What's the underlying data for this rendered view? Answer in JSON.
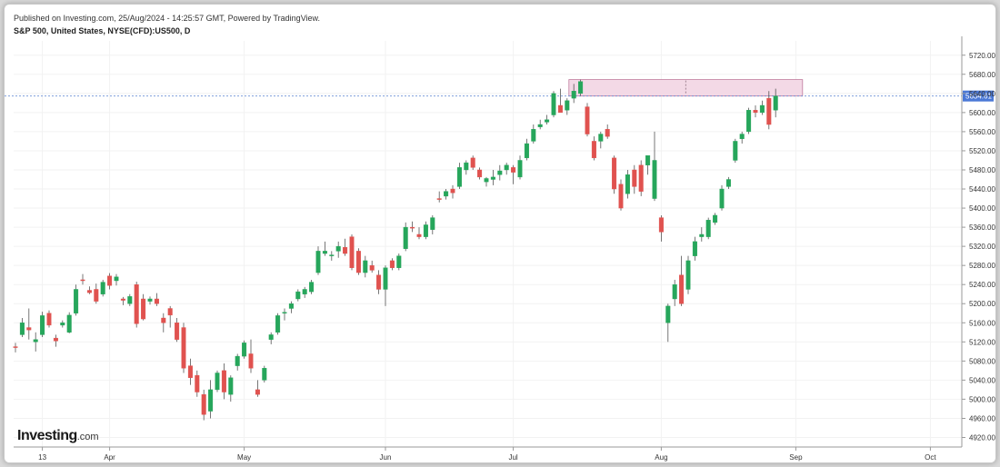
{
  "header": {
    "published": "Published on Investing.com, 25/Aug/2024 - 14:25:57 GMT, Powered by TradingView.",
    "title": "S&P 500, United States, NYSE(CFD):US500, D"
  },
  "logo": {
    "brand": "Investing",
    "suffix": ".com"
  },
  "colors": {
    "up": "#26a65b",
    "down": "#e0524f",
    "wick": "#555555",
    "grid": "#f2f2f2",
    "price_line": "#6b8fd6",
    "price_label_bg": "#4a78d6",
    "zone_fill": "#f3d9e6",
    "zone_stroke": "#c07a9c"
  },
  "chart_data": {
    "type": "candlestick",
    "ylim": [
      4900,
      5750
    ],
    "y_ticks": [
      4920,
      4960,
      5000,
      5040,
      5080,
      5120,
      5160,
      5200,
      5240,
      5280,
      5320,
      5360,
      5400,
      5440,
      5480,
      5520,
      5560,
      5600,
      5640,
      5680,
      5720
    ],
    "x_tick_labels": [
      {
        "label": "13",
        "index": 4
      },
      {
        "label": "Apr",
        "index": 14
      },
      {
        "label": "May",
        "index": 34
      },
      {
        "label": "Jun",
        "index": 55
      },
      {
        "label": "Jul",
        "index": 74
      },
      {
        "label": "Aug",
        "index": 96
      },
      {
        "label": "Sep",
        "index": 116
      },
      {
        "label": "Oct",
        "index": 136
      }
    ],
    "current_price": 5634.61,
    "current_price_label": "5634.61",
    "zone": {
      "start_index": 82,
      "end_index": 117,
      "low": 5634.61,
      "high": 5669
    },
    "candles": [
      {
        "o": 5110,
        "h": 5118,
        "l": 5098,
        "c": 5109
      },
      {
        "o": 5135,
        "h": 5170,
        "l": 5130,
        "c": 5160
      },
      {
        "o": 5150,
        "h": 5190,
        "l": 5125,
        "c": 5145
      },
      {
        "o": 5120,
        "h": 5140,
        "l": 5100,
        "c": 5125
      },
      {
        "o": 5135,
        "h": 5183,
        "l": 5130,
        "c": 5175
      },
      {
        "o": 5180,
        "h": 5186,
        "l": 5150,
        "c": 5155
      },
      {
        "o": 5128,
        "h": 5135,
        "l": 5110,
        "c": 5122
      },
      {
        "o": 5155,
        "h": 5165,
        "l": 5150,
        "c": 5160
      },
      {
        "o": 5140,
        "h": 5182,
        "l": 5138,
        "c": 5176
      },
      {
        "o": 5180,
        "h": 5240,
        "l": 5175,
        "c": 5230
      },
      {
        "o": 5250,
        "h": 5262,
        "l": 5240,
        "c": 5248
      },
      {
        "o": 5228,
        "h": 5236,
        "l": 5220,
        "c": 5223
      },
      {
        "o": 5230,
        "h": 5242,
        "l": 5200,
        "c": 5205
      },
      {
        "o": 5220,
        "h": 5250,
        "l": 5215,
        "c": 5245
      },
      {
        "o": 5258,
        "h": 5264,
        "l": 5230,
        "c": 5238
      },
      {
        "o": 5248,
        "h": 5262,
        "l": 5238,
        "c": 5256
      },
      {
        "o": 5210,
        "h": 5214,
        "l": 5197,
        "c": 5207
      },
      {
        "o": 5200,
        "h": 5220,
        "l": 5195,
        "c": 5215
      },
      {
        "o": 5240,
        "h": 5246,
        "l": 5150,
        "c": 5158
      },
      {
        "o": 5210,
        "h": 5220,
        "l": 5165,
        "c": 5168
      },
      {
        "o": 5205,
        "h": 5215,
        "l": 5198,
        "c": 5210
      },
      {
        "o": 5210,
        "h": 5222,
        "l": 5195,
        "c": 5200
      },
      {
        "o": 5170,
        "h": 5180,
        "l": 5140,
        "c": 5160
      },
      {
        "o": 5190,
        "h": 5195,
        "l": 5150,
        "c": 5176
      },
      {
        "o": 5160,
        "h": 5170,
        "l": 5120,
        "c": 5125
      },
      {
        "o": 5150,
        "h": 5160,
        "l": 5055,
        "c": 5065
      },
      {
        "o": 5070,
        "h": 5085,
        "l": 5030,
        "c": 5045
      },
      {
        "o": 5050,
        "h": 5060,
        "l": 5005,
        "c": 5015
      },
      {
        "o": 5010,
        "h": 5020,
        "l": 4956,
        "c": 4968
      },
      {
        "o": 4975,
        "h": 5040,
        "l": 4960,
        "c": 5020
      },
      {
        "o": 5020,
        "h": 5060,
        "l": 5015,
        "c": 5055
      },
      {
        "o": 5060,
        "h": 5075,
        "l": 5000,
        "c": 5015
      },
      {
        "o": 5010,
        "h": 5050,
        "l": 4995,
        "c": 5045
      },
      {
        "o": 5070,
        "h": 5095,
        "l": 5060,
        "c": 5090
      },
      {
        "o": 5090,
        "h": 5123,
        "l": 5085,
        "c": 5118
      },
      {
        "o": 5095,
        "h": 5125,
        "l": 5055,
        "c": 5065
      },
      {
        "o": 5020,
        "h": 5040,
        "l": 5005,
        "c": 5010
      },
      {
        "o": 5040,
        "h": 5070,
        "l": 5035,
        "c": 5065
      },
      {
        "o": 5125,
        "h": 5140,
        "l": 5115,
        "c": 5135
      },
      {
        "o": 5140,
        "h": 5180,
        "l": 5135,
        "c": 5175
      },
      {
        "o": 5180,
        "h": 5190,
        "l": 5165,
        "c": 5182
      },
      {
        "o": 5190,
        "h": 5205,
        "l": 5180,
        "c": 5200
      },
      {
        "o": 5210,
        "h": 5230,
        "l": 5205,
        "c": 5225
      },
      {
        "o": 5220,
        "h": 5235,
        "l": 5212,
        "c": 5230
      },
      {
        "o": 5225,
        "h": 5250,
        "l": 5220,
        "c": 5245
      },
      {
        "o": 5265,
        "h": 5320,
        "l": 5260,
        "c": 5310
      },
      {
        "o": 5305,
        "h": 5330,
        "l": 5300,
        "c": 5310
      },
      {
        "o": 5300,
        "h": 5310,
        "l": 5290,
        "c": 5302
      },
      {
        "o": 5310,
        "h": 5330,
        "l": 5296,
        "c": 5320
      },
      {
        "o": 5318,
        "h": 5336,
        "l": 5300,
        "c": 5305
      },
      {
        "o": 5340,
        "h": 5345,
        "l": 5270,
        "c": 5275
      },
      {
        "o": 5310,
        "h": 5316,
        "l": 5260,
        "c": 5265
      },
      {
        "o": 5265,
        "h": 5300,
        "l": 5255,
        "c": 5290
      },
      {
        "o": 5280,
        "h": 5290,
        "l": 5265,
        "c": 5270
      },
      {
        "o": 5260,
        "h": 5270,
        "l": 5220,
        "c": 5230
      },
      {
        "o": 5230,
        "h": 5280,
        "l": 5195,
        "c": 5275
      },
      {
        "o": 5290,
        "h": 5295,
        "l": 5270,
        "c": 5275
      },
      {
        "o": 5275,
        "h": 5305,
        "l": 5270,
        "c": 5300
      },
      {
        "o": 5315,
        "h": 5370,
        "l": 5310,
        "c": 5360
      },
      {
        "o": 5360,
        "h": 5372,
        "l": 5350,
        "c": 5358
      },
      {
        "o": 5345,
        "h": 5360,
        "l": 5335,
        "c": 5340
      },
      {
        "o": 5340,
        "h": 5372,
        "l": 5335,
        "c": 5365
      },
      {
        "o": 5355,
        "h": 5385,
        "l": 5345,
        "c": 5380
      },
      {
        "o": 5420,
        "h": 5435,
        "l": 5412,
        "c": 5418
      },
      {
        "o": 5425,
        "h": 5440,
        "l": 5418,
        "c": 5435
      },
      {
        "o": 5440,
        "h": 5448,
        "l": 5420,
        "c": 5432
      },
      {
        "o": 5445,
        "h": 5495,
        "l": 5440,
        "c": 5485
      },
      {
        "o": 5480,
        "h": 5500,
        "l": 5470,
        "c": 5495
      },
      {
        "o": 5505,
        "h": 5510,
        "l": 5480,
        "c": 5485
      },
      {
        "o": 5480,
        "h": 5485,
        "l": 5460,
        "c": 5465
      },
      {
        "o": 5455,
        "h": 5465,
        "l": 5445,
        "c": 5462
      },
      {
        "o": 5460,
        "h": 5480,
        "l": 5448,
        "c": 5465
      },
      {
        "o": 5470,
        "h": 5490,
        "l": 5458,
        "c": 5478
      },
      {
        "o": 5480,
        "h": 5495,
        "l": 5470,
        "c": 5490
      },
      {
        "o": 5485,
        "h": 5490,
        "l": 5450,
        "c": 5475
      },
      {
        "o": 5465,
        "h": 5510,
        "l": 5460,
        "c": 5500
      },
      {
        "o": 5505,
        "h": 5545,
        "l": 5500,
        "c": 5535
      },
      {
        "o": 5540,
        "h": 5575,
        "l": 5535,
        "c": 5565
      },
      {
        "o": 5570,
        "h": 5585,
        "l": 5565,
        "c": 5575
      },
      {
        "o": 5580,
        "h": 5595,
        "l": 5575,
        "c": 5585
      },
      {
        "o": 5595,
        "h": 5645,
        "l": 5590,
        "c": 5640
      },
      {
        "o": 5615,
        "h": 5650,
        "l": 5605,
        "c": 5600
      },
      {
        "o": 5605,
        "h": 5630,
        "l": 5595,
        "c": 5625
      },
      {
        "o": 5630,
        "h": 5660,
        "l": 5620,
        "c": 5645
      },
      {
        "o": 5640,
        "h": 5669,
        "l": 5635,
        "c": 5665
      },
      {
        "o": 5612,
        "h": 5620,
        "l": 5550,
        "c": 5555
      },
      {
        "o": 5540,
        "h": 5550,
        "l": 5500,
        "c": 5505
      },
      {
        "o": 5540,
        "h": 5560,
        "l": 5525,
        "c": 5555
      },
      {
        "o": 5565,
        "h": 5575,
        "l": 5545,
        "c": 5550
      },
      {
        "o": 5505,
        "h": 5510,
        "l": 5430,
        "c": 5440
      },
      {
        "o": 5450,
        "h": 5460,
        "l": 5395,
        "c": 5400
      },
      {
        "o": 5430,
        "h": 5480,
        "l": 5420,
        "c": 5470
      },
      {
        "o": 5480,
        "h": 5490,
        "l": 5430,
        "c": 5445
      },
      {
        "o": 5490,
        "h": 5500,
        "l": 5425,
        "c": 5435
      },
      {
        "o": 5490,
        "h": 5510,
        "l": 5470,
        "c": 5510
      },
      {
        "o": 5420,
        "h": 5560,
        "l": 5415,
        "c": 5500
      },
      {
        "o": 5380,
        "h": 5385,
        "l": 5330,
        "c": 5350
      },
      {
        "o": 5160,
        "h": 5200,
        "l": 5120,
        "c": 5195
      },
      {
        "o": 5210,
        "h": 5250,
        "l": 5195,
        "c": 5240
      },
      {
        "o": 5260,
        "h": 5300,
        "l": 5195,
        "c": 5200
      },
      {
        "o": 5230,
        "h": 5300,
        "l": 5220,
        "c": 5290
      },
      {
        "o": 5300,
        "h": 5340,
        "l": 5290,
        "c": 5330
      },
      {
        "o": 5340,
        "h": 5360,
        "l": 5330,
        "c": 5345
      },
      {
        "o": 5340,
        "h": 5380,
        "l": 5335,
        "c": 5375
      },
      {
        "o": 5370,
        "h": 5390,
        "l": 5365,
        "c": 5385
      },
      {
        "o": 5400,
        "h": 5448,
        "l": 5395,
        "c": 5440
      },
      {
        "o": 5445,
        "h": 5465,
        "l": 5440,
        "c": 5460
      },
      {
        "o": 5500,
        "h": 5545,
        "l": 5495,
        "c": 5540
      },
      {
        "o": 5545,
        "h": 5560,
        "l": 5535,
        "c": 5555
      },
      {
        "o": 5560,
        "h": 5610,
        "l": 5555,
        "c": 5605
      },
      {
        "o": 5605,
        "h": 5615,
        "l": 5590,
        "c": 5600
      },
      {
        "o": 5600,
        "h": 5625,
        "l": 5595,
        "c": 5615
      },
      {
        "o": 5630,
        "h": 5645,
        "l": 5565,
        "c": 5575
      },
      {
        "o": 5605,
        "h": 5650,
        "l": 5590,
        "c": 5634.61
      }
    ]
  }
}
